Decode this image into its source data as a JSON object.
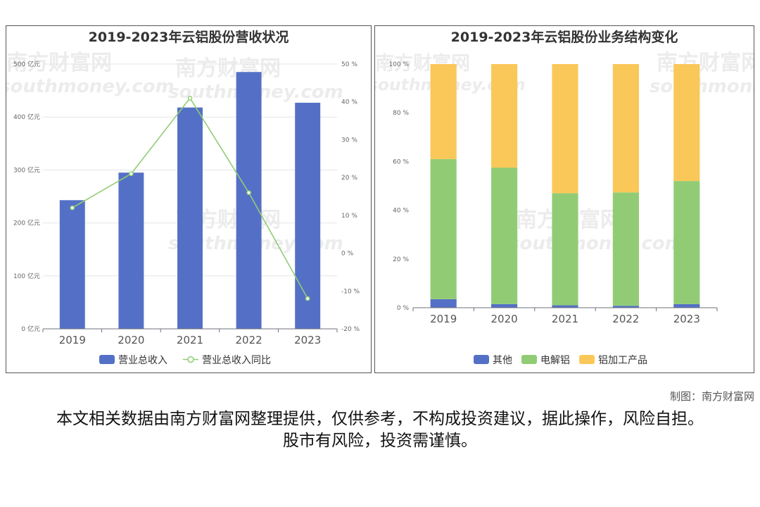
{
  "credit": "制图：南方财富网",
  "disclaimer": "本文相关数据由南方财富网整理提供，仅供参考，不构成投资建议，据此操作，风险自担。股市有风险，投资需谨慎。",
  "watermark": {
    "cn": "南方财富网",
    "en": "southmoney.com"
  },
  "chart_data": [
    {
      "type": "bar",
      "title": "2019-2023年云铝股份营收状况",
      "categories": [
        "2019",
        "2020",
        "2021",
        "2022",
        "2023"
      ],
      "y_ticks": [
        "0 亿元",
        "100 亿元",
        "200 亿元",
        "300 亿元",
        "400 亿元",
        "500 亿元"
      ],
      "y2_ticks": [
        "-20 %",
        "-10 %",
        "0 %",
        "10 %",
        "20 %",
        "30 %",
        "40 %",
        "50 %"
      ],
      "ylim": [
        0,
        500
      ],
      "y2lim": [
        -20,
        50
      ],
      "grid": true,
      "legend_position": "bottom",
      "series": [
        {
          "name": "营业总收入",
          "type": "bar",
          "axis": "left",
          "color": "#5470c6",
          "values": [
            243,
            295,
            418,
            485,
            427
          ]
        },
        {
          "name": "营业总收入同比",
          "type": "line",
          "axis": "right",
          "color": "#91cc75",
          "values": [
            12,
            21,
            41,
            16,
            -12
          ]
        }
      ]
    },
    {
      "type": "bar",
      "stacked": true,
      "title": "2019-2023年云铝股份业务结构变化",
      "categories": [
        "2019",
        "2020",
        "2021",
        "2022",
        "2023"
      ],
      "y_ticks": [
        "0 %",
        "20 %",
        "40 %",
        "60 %",
        "80 %",
        "100 %"
      ],
      "ylim": [
        0,
        100
      ],
      "legend_position": "bottom",
      "series": [
        {
          "name": "其他",
          "color": "#5470c6",
          "values": [
            3.5,
            1.5,
            1,
            0.8,
            1.5
          ]
        },
        {
          "name": "电解铝",
          "color": "#91cc75",
          "values": [
            57.5,
            56,
            46,
            46.5,
            50.5
          ]
        },
        {
          "name": "铝加工产品",
          "color": "#fac858",
          "values": [
            39,
            42.5,
            53,
            52.7,
            48
          ]
        }
      ]
    }
  ]
}
